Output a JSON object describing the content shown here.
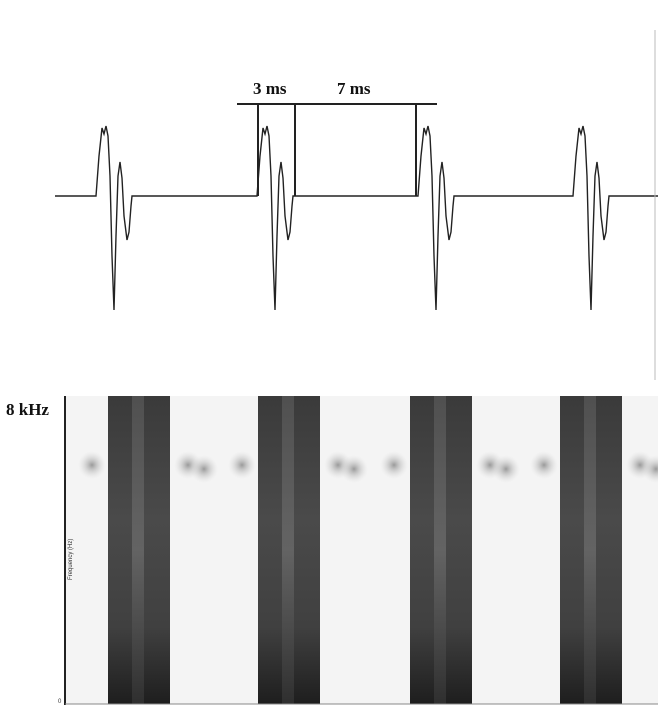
{
  "annotations": {
    "interval_1": "3 ms",
    "interval_2": "7 ms"
  },
  "spectrogram": {
    "top_label": "8 kHz",
    "bottom_label": "0",
    "axis_label": "Frequency (Hz)"
  }
}
